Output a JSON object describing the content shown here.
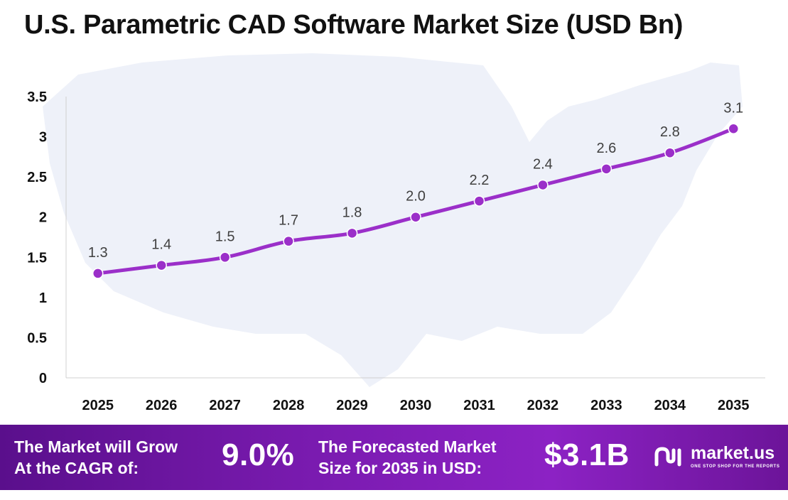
{
  "chart_data": {
    "type": "line",
    "title": "U.S. Parametric CAD Software Market Size (USD Bn)",
    "categories": [
      "2025",
      "2026",
      "2027",
      "2028",
      "2029",
      "2030",
      "2031",
      "2032",
      "2033",
      "2034",
      "2035"
    ],
    "values": [
      1.3,
      1.4,
      1.5,
      1.7,
      1.8,
      2.0,
      2.2,
      2.4,
      2.6,
      2.8,
      3.1
    ],
    "data_labels": [
      "1.3",
      "1.4",
      "1.5",
      "1.7",
      "1.8",
      "2.0",
      "2.2",
      "2.4",
      "2.6",
      "2.8",
      "3.1"
    ],
    "y_ticks": [
      "0",
      "0.5",
      "1",
      "1.5",
      "2",
      "2.5",
      "3",
      "3.5"
    ],
    "ylim": [
      0,
      3.5
    ],
    "grid": false,
    "legend": "none",
    "line_color": "#9b2fc9"
  },
  "footer": {
    "cagr_label_line1": "The Market will Grow",
    "cagr_label_line2": "At the CAGR of:",
    "cagr_value": "9.0%",
    "forecast_label_line1": "The Forecasted Market",
    "forecast_label_line2": "Size for 2035 in USD:",
    "forecast_value": "$3.1B",
    "brand_name": "market.us",
    "brand_tagline": "ONE STOP SHOP FOR THE REPORTS",
    "brand_icon": "market-us-logo-icon"
  },
  "colors": {
    "footer_gradient_start": "#5a0f8c",
    "footer_gradient_end": "#8c22c4",
    "map_background": "#eef1f9"
  }
}
